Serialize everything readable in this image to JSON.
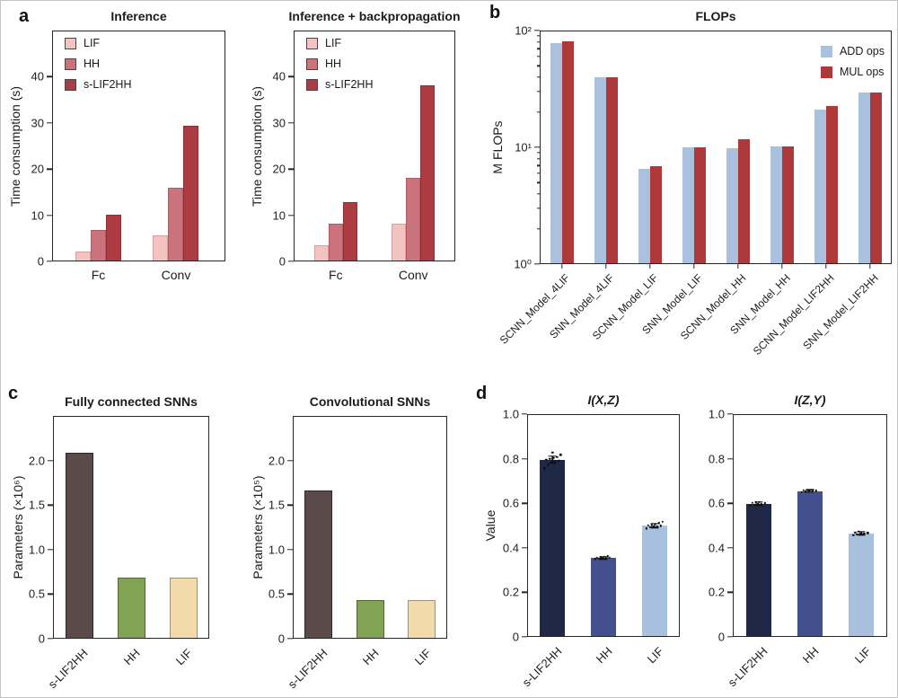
{
  "panels": [
    {
      "id": "a",
      "letter": "a"
    },
    {
      "id": "b",
      "letter": "b"
    },
    {
      "id": "c",
      "letter": "c"
    },
    {
      "id": "d",
      "letter": "d"
    }
  ],
  "chart_data": [
    {
      "id": "a1",
      "panel": "a",
      "type": "bar",
      "scale": "linear",
      "title": "Inference",
      "ylabel": "Time consumption (s)",
      "ylim": [
        0,
        50
      ],
      "yticks": [
        {
          "v": 0,
          "label": "0"
        },
        {
          "v": 10,
          "label": "10"
        },
        {
          "v": 20,
          "label": "20"
        },
        {
          "v": 30,
          "label": "30"
        },
        {
          "v": 40,
          "label": "40"
        }
      ],
      "categories": [
        "Fc",
        "Conv"
      ],
      "series": [
        {
          "name": "LIF",
          "fill": "#f2c3c1",
          "edge": "#d8a09d",
          "values": [
            2.1,
            5.6
          ]
        },
        {
          "name": "HH",
          "fill": "#ca737c",
          "edge": "#b25962",
          "values": [
            6.8,
            16.0
          ]
        },
        {
          "name": "s-LIF2HH",
          "fill": "#ad3b42",
          "edge": "#8e2f35",
          "values": [
            10.1,
            29.4
          ]
        }
      ],
      "legend": {
        "show": true,
        "position": "top-left",
        "swatch_edge": "#4a4444"
      }
    },
    {
      "id": "a2",
      "panel": "a",
      "type": "bar",
      "scale": "linear",
      "title": "Inference + backpropagation",
      "ylabel": "Time consumption (s)",
      "ylim": [
        0,
        50
      ],
      "yticks": [
        {
          "v": 0,
          "label": "0"
        },
        {
          "v": 10,
          "label": "10"
        },
        {
          "v": 20,
          "label": "20"
        },
        {
          "v": 30,
          "label": "30"
        },
        {
          "v": 40,
          "label": "40"
        }
      ],
      "categories": [
        "Fc",
        "Conv"
      ],
      "series": [
        {
          "name": "LIF",
          "fill": "#f2c3c1",
          "edge": "#d8a09d",
          "values": [
            3.6,
            8.1
          ]
        },
        {
          "name": "HH",
          "fill": "#ca737c",
          "edge": "#b25962",
          "values": [
            8.2,
            18.0
          ]
        },
        {
          "name": "s-LIF2HH",
          "fill": "#ad3b42",
          "edge": "#8e2f35",
          "values": [
            12.9,
            38.1
          ]
        }
      ],
      "legend": {
        "show": true,
        "position": "top-left",
        "swatch_edge": "#4a4444"
      }
    },
    {
      "id": "b",
      "panel": "b",
      "type": "bar",
      "scale": "log",
      "title": "FLOPs",
      "ylabel": "M FLOPs",
      "ylim": [
        1,
        100
      ],
      "yticks": [
        {
          "v": 1,
          "label": "10⁰"
        },
        {
          "v": 10,
          "label": "10¹"
        },
        {
          "v": 100,
          "label": "10²"
        }
      ],
      "categories": [
        "SCNN_Model_4LIF",
        "SNN_Model_4LIF",
        "SCNN_Model_LIF",
        "SNN_Model_LIF",
        "SCNN_Model_HH",
        "SNN_Model_HH",
        "SCNN_Model_LIF2HH",
        "SNN_Model_LIF2HH"
      ],
      "series": [
        {
          "name": "ADD ops",
          "fill": "#a9c1dd",
          "edge": "",
          "values": [
            78,
            40,
            6.5,
            10.0,
            9.8,
            10.2,
            21.0,
            29.5
          ]
        },
        {
          "name": "MUL ops",
          "fill": "#ad393b",
          "edge": "",
          "values": [
            81,
            40,
            6.9,
            10.0,
            11.8,
            10.2,
            22.5,
            29.5
          ]
        }
      ],
      "legend": {
        "show": true,
        "position": "top-right",
        "swatch_edge": ""
      }
    },
    {
      "id": "c1",
      "panel": "c",
      "type": "bar",
      "scale": "linear",
      "title": "Fully connected SNNs",
      "ylabel": "Parameters (×10⁶)",
      "ylim": [
        0,
        2.5
      ],
      "yticks": [
        {
          "v": 0,
          "label": "0"
        },
        {
          "v": 0.5,
          "label": "0.5"
        },
        {
          "v": 1.0,
          "label": "1.0"
        },
        {
          "v": 1.5,
          "label": "1.5"
        },
        {
          "v": 2.0,
          "label": "2.0"
        }
      ],
      "categories": [
        "s-LIF2HH",
        "HH",
        "LIF"
      ],
      "values": [
        2.09,
        0.69,
        0.69
      ],
      "colors": [
        "#5a4b4a",
        "#81a353",
        "#f2daab"
      ],
      "edges": [
        "#2e2626",
        "#51682e",
        "#9a9181"
      ]
    },
    {
      "id": "c2",
      "panel": "c",
      "type": "bar",
      "scale": "linear",
      "title": "Convolutional SNNs",
      "ylabel": "Parameters (×10⁵)",
      "ylim": [
        0,
        2.5
      ],
      "yticks": [
        {
          "v": 0,
          "label": "0"
        },
        {
          "v": 0.5,
          "label": "0.5"
        },
        {
          "v": 1.0,
          "label": "1.0"
        },
        {
          "v": 1.5,
          "label": "1.5"
        },
        {
          "v": 2.0,
          "label": "2.0"
        }
      ],
      "categories": [
        "s-LIF2HH",
        "HH",
        "LIF"
      ],
      "values": [
        1.66,
        0.43,
        0.43
      ],
      "colors": [
        "#5a4b4a",
        "#81a353",
        "#f2daab"
      ],
      "edges": [
        "#2e2626",
        "#51682e",
        "#9a9181"
      ]
    },
    {
      "id": "d1",
      "panel": "d",
      "type": "bar",
      "scale": "linear",
      "title": "I(X,Z)",
      "title_italic": true,
      "ylabel": "Value",
      "ylim": [
        0,
        1.0
      ],
      "yticks": [
        {
          "v": 0,
          "label": "0"
        },
        {
          "v": 0.2,
          "label": "0.2"
        },
        {
          "v": 0.4,
          "label": "0.4"
        },
        {
          "v": 0.6,
          "label": "0.6"
        },
        {
          "v": 0.8,
          "label": "0.8"
        },
        {
          "v": 1.0,
          "label": "1.0"
        }
      ],
      "categories": [
        "s-LIF2HH",
        "HH",
        "LIF"
      ],
      "values": [
        0.795,
        0.355,
        0.499
      ],
      "errors": [
        0.016,
        0.005,
        0.009
      ],
      "points": [
        [
          0.757,
          0.772,
          0.783,
          0.788,
          0.792,
          0.795,
          0.798,
          0.802,
          0.807,
          0.818,
          0.828
        ],
        [
          0.349,
          0.351,
          0.353,
          0.354,
          0.355,
          0.356,
          0.357,
          0.359,
          0.362
        ],
        [
          0.487,
          0.492,
          0.495,
          0.497,
          0.499,
          0.501,
          0.503,
          0.506,
          0.511,
          0.518
        ]
      ],
      "colors": [
        "#1f2847",
        "#42508d",
        "#a6c0de"
      ],
      "edges": [
        "",
        "",
        ""
      ]
    },
    {
      "id": "d2",
      "panel": "d",
      "type": "bar",
      "scale": "linear",
      "title": "I(Z,Y)",
      "title_italic": true,
      "ylabel": "",
      "ylim": [
        0,
        1.0
      ],
      "yticks": [
        {
          "v": 0,
          "label": "0"
        },
        {
          "v": 0.2,
          "label": "0.2"
        },
        {
          "v": 0.4,
          "label": "0.4"
        },
        {
          "v": 0.6,
          "label": "0.6"
        },
        {
          "v": 0.8,
          "label": "0.8"
        },
        {
          "v": 1.0,
          "label": "1.0"
        }
      ],
      "categories": [
        "s-LIF2HH",
        "HH",
        "LIF"
      ],
      "values": [
        0.598,
        0.655,
        0.465
      ],
      "errors": [
        0.007,
        0.005,
        0.007
      ],
      "points": [
        [
          0.59,
          0.594,
          0.596,
          0.598,
          0.599,
          0.601,
          0.603,
          0.606
        ],
        [
          0.649,
          0.652,
          0.653,
          0.655,
          0.656,
          0.657,
          0.659
        ],
        [
          0.457,
          0.461,
          0.463,
          0.465,
          0.467,
          0.469,
          0.472
        ]
      ],
      "colors": [
        "#1f2847",
        "#42508d",
        "#a6c0de"
      ],
      "edges": [
        "",
        "",
        ""
      ]
    }
  ]
}
